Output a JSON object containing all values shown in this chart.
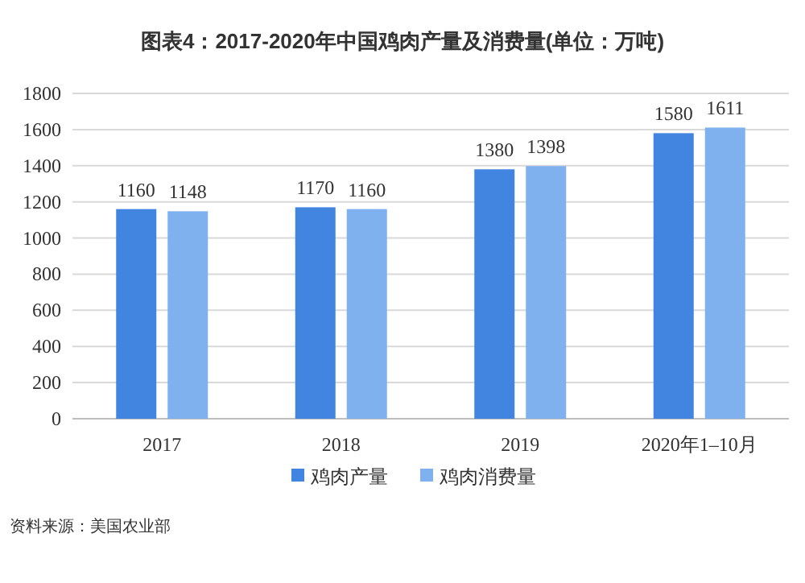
{
  "chart_data": {
    "type": "bar",
    "title": "图表4：2017-2020年中国鸡肉产量及消费量(单位：万吨)",
    "categories": [
      "2017",
      "2018",
      "2019",
      "2020年1–10月"
    ],
    "series": [
      {
        "name": "鸡肉产量",
        "color": "#4285e0",
        "values": [
          1160,
          1170,
          1380,
          1580
        ]
      },
      {
        "name": "鸡肉消费量",
        "color": "#7fb1ef",
        "values": [
          1148,
          1160,
          1398,
          1611
        ]
      }
    ],
    "ylim": [
      0,
      1800
    ],
    "yticks": [
      0,
      200,
      400,
      600,
      800,
      1000,
      1200,
      1400,
      1600,
      1800
    ],
    "grid": "y",
    "legend": "bottom",
    "data_labels": true,
    "annotations": [
      "资料来源：美国农业部"
    ]
  }
}
